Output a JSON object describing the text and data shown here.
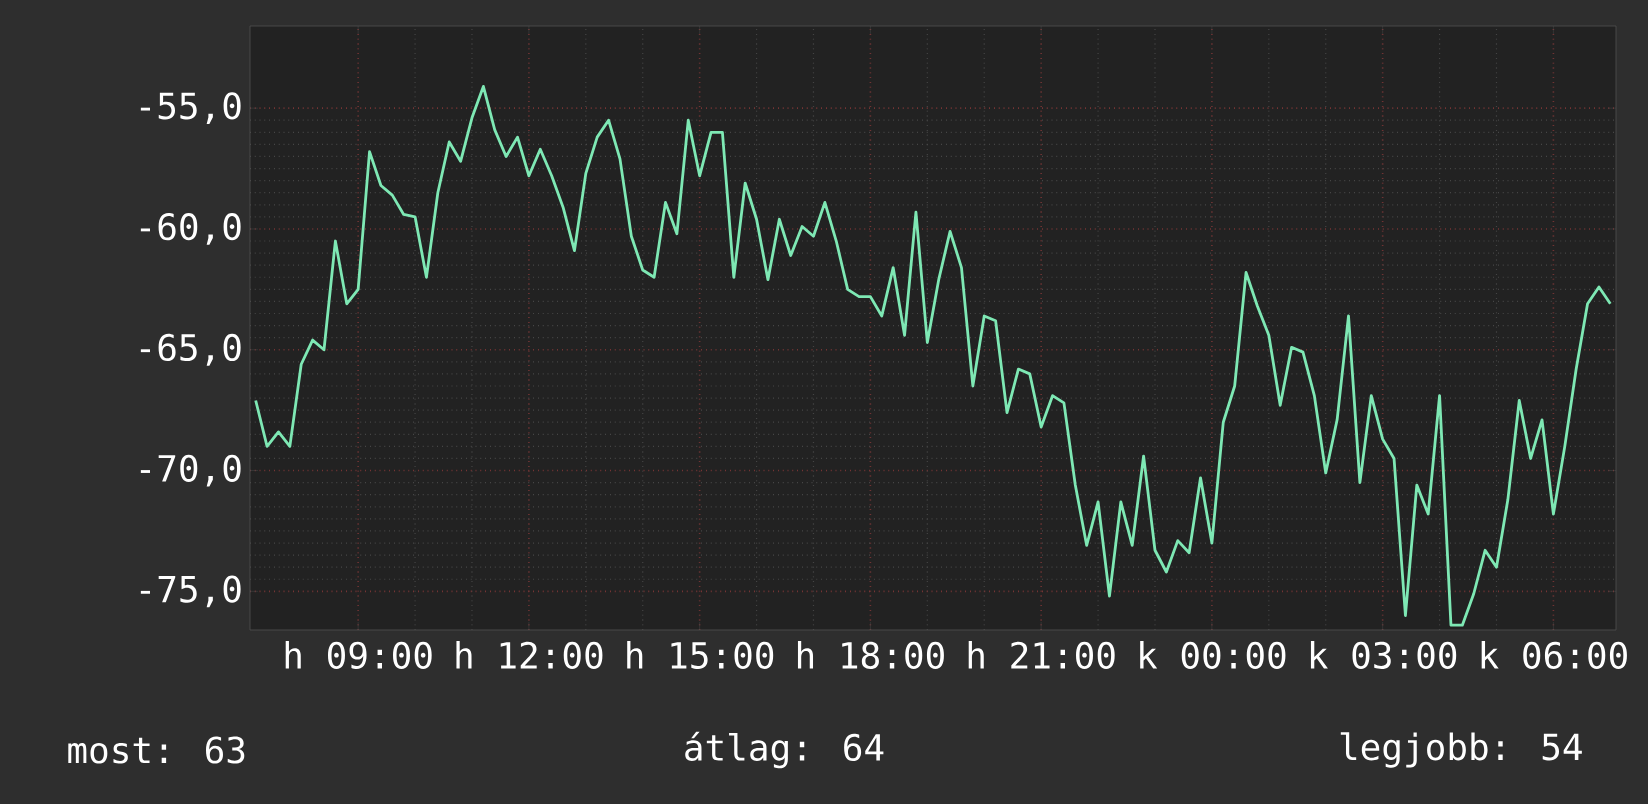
{
  "chart_data": {
    "type": "line",
    "categories": [
      null,
      null,
      null,
      null,
      null,
      null,
      null,
      null,
      null,
      "h 09:00",
      null,
      null,
      null,
      null,
      null,
      null,
      null,
      null,
      null,
      null,
      null,
      null,
      null,
      null,
      "h 12:00",
      null,
      null,
      null,
      null,
      null,
      null,
      null,
      null,
      null,
      null,
      null,
      null,
      null,
      null,
      "h 15:00",
      null,
      null,
      null,
      null,
      null,
      null,
      null,
      null,
      null,
      null,
      null,
      null,
      null,
      null,
      "h 18:00",
      null,
      null,
      null,
      null,
      null,
      null,
      null,
      null,
      null,
      null,
      null,
      null,
      null,
      null,
      "h 21:00",
      null,
      null,
      null,
      null,
      null,
      null,
      null,
      null,
      null,
      null,
      null,
      null,
      null,
      null,
      "k 00:00",
      null,
      null,
      null,
      null,
      null,
      null,
      null,
      null,
      null,
      null,
      null,
      null,
      null,
      null,
      "k 03:00",
      null,
      null,
      null,
      null,
      null,
      null,
      null,
      null,
      null,
      null,
      null,
      null,
      null,
      null,
      "k 06:00",
      null,
      null,
      null,
      null,
      null
    ],
    "values": [
      -67.1,
      -69.0,
      -68.4,
      -69.0,
      -65.6,
      -64.6,
      -65.0,
      -60.5,
      -63.1,
      -62.5,
      -56.8,
      -58.2,
      -58.6,
      -59.4,
      -59.5,
      -62.0,
      -58.5,
      -56.4,
      -57.2,
      -55.4,
      -54.1,
      -55.9,
      -57.0,
      -56.2,
      -57.8,
      -56.7,
      -57.8,
      -59.1,
      -60.9,
      -57.7,
      -56.2,
      -55.5,
      -57.1,
      -60.3,
      -61.7,
      -62.0,
      -58.9,
      -60.2,
      -55.5,
      -57.8,
      -56.0,
      -56.0,
      -62.0,
      -58.1,
      -59.6,
      -62.1,
      -59.6,
      -61.1,
      -59.9,
      -60.3,
      -58.9,
      -60.5,
      -62.5,
      -62.8,
      -62.8,
      -63.6,
      -61.6,
      -64.4,
      -59.3,
      -64.7,
      -62.1,
      -60.1,
      -61.6,
      -66.5,
      -63.6,
      -63.8,
      -67.6,
      -65.8,
      -66.0,
      -68.2,
      -66.9,
      -67.2,
      -70.6,
      -73.1,
      -71.3,
      -75.2,
      -71.3,
      -73.1,
      -69.4,
      -73.3,
      -74.2,
      -72.9,
      -73.4,
      -70.3,
      -73.0,
      -68.0,
      -66.5,
      -61.8,
      -63.2,
      -64.4,
      -67.3,
      -64.9,
      -65.1,
      -66.9,
      -70.1,
      -67.9,
      -63.6,
      -70.5,
      -66.9,
      -68.7,
      -69.5,
      -76.0,
      -70.6,
      -71.8,
      -66.9,
      -76.4,
      -76.4,
      -75.1,
      -73.3,
      -74.0,
      -71.2,
      -67.1,
      -69.5,
      -67.9,
      -71.8,
      -69.0,
      -65.8,
      -63.1,
      -62.4,
      -63.1
    ],
    "color": "#7ee8b4",
    "ylim": [
      -76.6,
      -51.6
    ],
    "yticks": [
      {
        "value": -75,
        "label": "-75,0"
      },
      {
        "value": -70,
        "label": "-70,0"
      },
      {
        "value": -65,
        "label": "-65,0"
      },
      {
        "value": -60,
        "label": "-60,0"
      },
      {
        "value": -55,
        "label": "-55,0"
      }
    ],
    "grid": true,
    "marker": "none",
    "line_style": "solid",
    "annotations": [
      "most: 63",
      "átlag: 64",
      "legjobb: 54"
    ]
  }
}
